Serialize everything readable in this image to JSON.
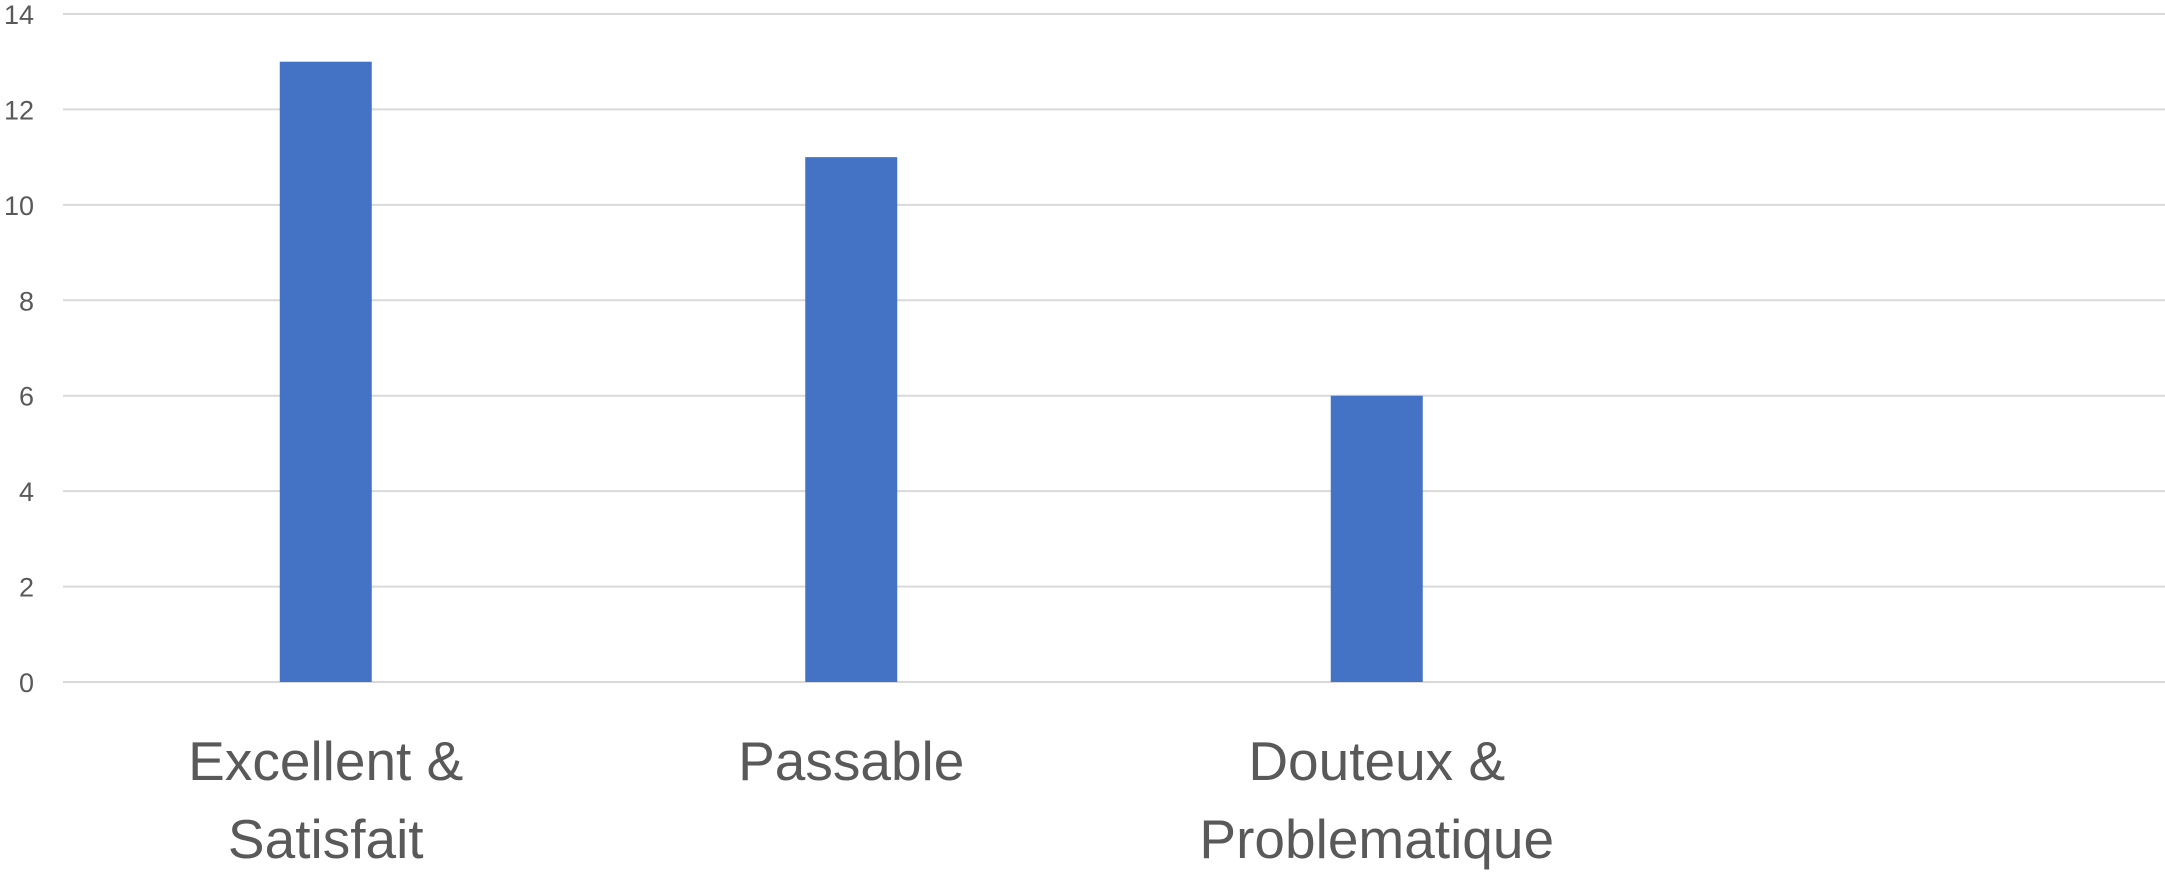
{
  "chart_data": {
    "type": "bar",
    "categories": [
      "Excellent & Satisfait",
      "Passable",
      "Douteux & Problematique",
      ""
    ],
    "values": [
      13,
      11,
      6,
      null
    ],
    "title": "",
    "xlabel": "",
    "ylabel": "",
    "ylim": [
      0,
      14
    ],
    "yticks": [
      0,
      2,
      4,
      6,
      8,
      10,
      12,
      14
    ],
    "grid": true,
    "legend": "none",
    "bar_color": "#4472c4"
  }
}
